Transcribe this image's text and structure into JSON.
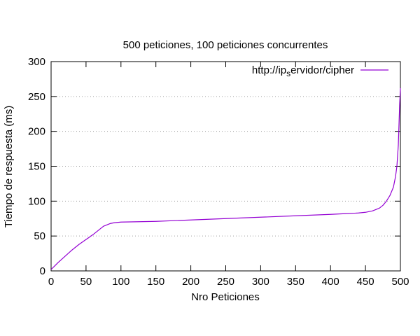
{
  "chart_data": {
    "type": "line",
    "title": "500 peticiones, 100 peticiones concurrentes",
    "xlabel": "Nro Peticiones",
    "ylabel": "Tiempo de respuesta (ms)",
    "xlim": [
      0,
      500
    ],
    "ylim": [
      0,
      300
    ],
    "xticks": [
      0,
      50,
      100,
      150,
      200,
      250,
      300,
      350,
      400,
      450,
      500
    ],
    "yticks": [
      0,
      50,
      100,
      150,
      200,
      250,
      300
    ],
    "grid": "horizontal-dotted",
    "legend_position": "top-right",
    "series": [
      {
        "name_main": "http://ip",
        "name_sub": "s",
        "name_rest": "ervidor/cipher",
        "color": "#9400d3",
        "x": [
          0,
          5,
          10,
          20,
          30,
          40,
          50,
          60,
          70,
          75,
          80,
          85,
          90,
          95,
          100,
          150,
          200,
          250,
          300,
          350,
          400,
          420,
          440,
          450,
          455,
          460,
          465,
          470,
          475,
          480,
          485,
          490,
          493,
          495,
          497,
          498,
          499,
          500
        ],
        "y": [
          2,
          7,
          12,
          21,
          30,
          38,
          45,
          52,
          60,
          64,
          66,
          68,
          69,
          69.5,
          70,
          71,
          73,
          75,
          77,
          79,
          81,
          82,
          83,
          84,
          85,
          86,
          88,
          90,
          94,
          100,
          108,
          120,
          135,
          150,
          180,
          210,
          240,
          262
        ]
      }
    ]
  }
}
